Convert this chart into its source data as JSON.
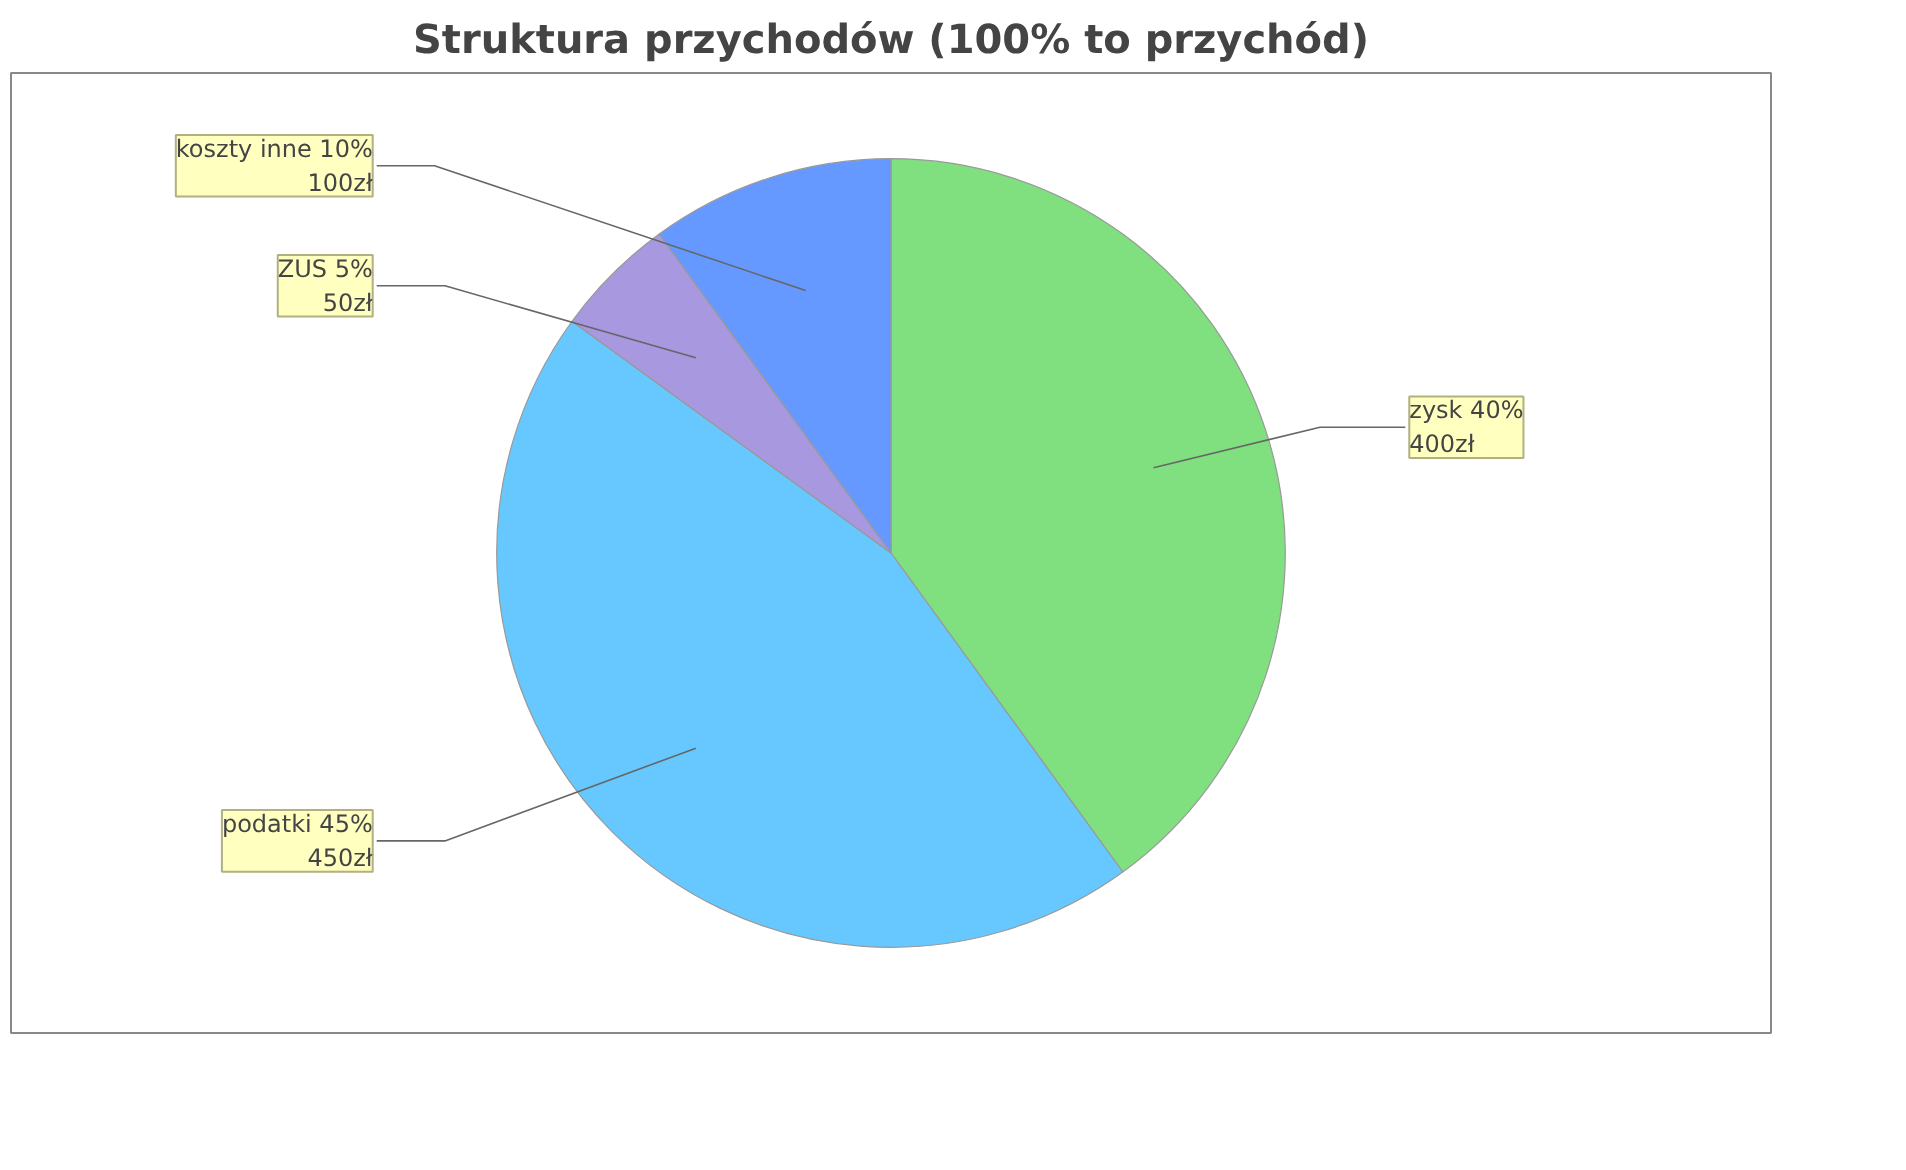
{
  "chart_data": {
    "type": "pie",
    "title": "Struktura przychodów (100% to przychód)",
    "categories": [
      "zysk",
      "podatki",
      "ZUS",
      "koszty inne"
    ],
    "values": [
      400,
      450,
      50,
      100
    ],
    "colors": [
      "#80e080",
      "#66c8ff",
      "#a898e0",
      "#6699ff"
    ],
    "value_labels": [
      "40%\n400zł",
      "45%\n450zł",
      "5%\n50zł",
      "10%\n100zł"
    ]
  }
}
